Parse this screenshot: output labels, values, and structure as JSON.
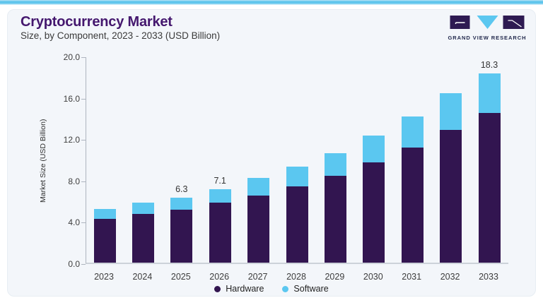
{
  "header": {
    "title": "Cryptocurrency Market",
    "subtitle": "Size, by Component, 2023 - 2033 (USD Billion)"
  },
  "logo": {
    "text": "GRAND VIEW RESEARCH"
  },
  "colors": {
    "hardware": "#321550",
    "software": "#5bc7f0",
    "title_purple": "#44176e",
    "card_background": "#f3f6fa",
    "axis_line": "#aeb5bf",
    "logo_navy": "#232a4d",
    "top_strip_blue": "#5fc5ec"
  },
  "chart_data": {
    "type": "bar",
    "stacked": true,
    "title": "Cryptocurrency Market",
    "subtitle": "Size, by Component, 2023 - 2033 (USD Billion)",
    "xlabel": "",
    "ylabel": "Market Size (USD Billion)",
    "ylim": [
      0,
      20
    ],
    "yticks": [
      0,
      4,
      8,
      12,
      16,
      20
    ],
    "ytick_labels": [
      "0.0",
      "4.0",
      "8.0",
      "12.0",
      "16.0",
      "20.0"
    ],
    "grid": false,
    "legend_position": "bottom",
    "categories": [
      "2023",
      "2024",
      "2025",
      "2026",
      "2027",
      "2028",
      "2029",
      "2030",
      "2031",
      "2032",
      "2033"
    ],
    "series": [
      {
        "name": "Hardware",
        "color": "#321550",
        "values": [
          4.2,
          4.7,
          5.1,
          5.8,
          6.5,
          7.4,
          8.4,
          9.7,
          11.1,
          12.8,
          14.5
        ]
      },
      {
        "name": "Software",
        "color": "#5bc7f0",
        "values": [
          1.0,
          1.1,
          1.2,
          1.3,
          1.7,
          1.9,
          2.2,
          2.6,
          3.0,
          3.6,
          3.8
        ]
      }
    ],
    "totals": [
      5.2,
      5.8,
      6.3,
      7.1,
      8.2,
      9.3,
      10.6,
      12.3,
      14.1,
      16.4,
      18.3
    ],
    "bar_labels": [
      "",
      "",
      "6.3",
      "7.1",
      "",
      "",
      "",
      "",
      "",
      "",
      "18.3"
    ]
  }
}
